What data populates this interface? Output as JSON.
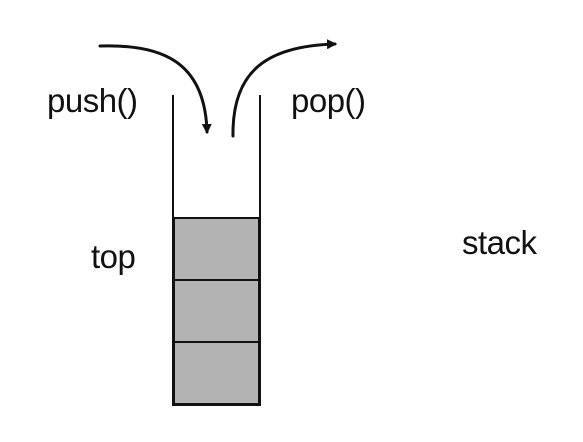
{
  "labels": {
    "push": "push()",
    "pop": "pop()",
    "top": "top",
    "stack": "stack"
  },
  "stack": {
    "element_count": 3
  },
  "colors": {
    "background": "#ffffff",
    "line": "#111111",
    "stack_element_fill": "#b3b3b3"
  }
}
